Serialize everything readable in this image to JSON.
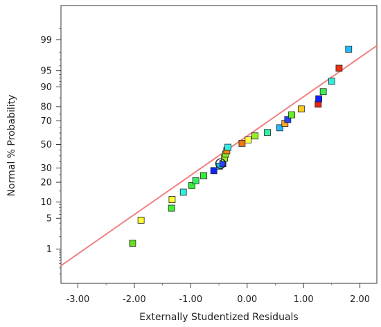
{
  "chart_data": {
    "type": "scatter",
    "xlabel": "Externally Studentized Residuals",
    "ylabel": "Normal % Probability",
    "xlim": [
      -3.3,
      2.3
    ],
    "ylim": [
      0.1,
      99.9
    ],
    "y_scale": "normal-probability",
    "grid": false,
    "legend": "none",
    "x_ticks": [
      {
        "value": -3,
        "label": "-3.00"
      },
      {
        "value": -2,
        "label": "-2.00"
      },
      {
        "value": -1,
        "label": "-1.00"
      },
      {
        "value": 0,
        "label": "0.00"
      },
      {
        "value": 1,
        "label": "1.00"
      },
      {
        "value": 2,
        "label": "2.00"
      }
    ],
    "y_ticks": [
      {
        "value": 1,
        "label": "1"
      },
      {
        "value": 5,
        "label": "5"
      },
      {
        "value": 10,
        "label": "10"
      },
      {
        "value": 20,
        "label": "20"
      },
      {
        "value": 30,
        "label": "30"
      },
      {
        "value": 50,
        "label": "50"
      },
      {
        "value": 70,
        "label": "70"
      },
      {
        "value": 80,
        "label": "80"
      },
      {
        "value": 90,
        "label": "90"
      },
      {
        "value": 95,
        "label": "95"
      },
      {
        "value": 99,
        "label": "99"
      }
    ],
    "reference_line": {
      "color": "#f08080",
      "points": [
        {
          "x": -3.3,
          "y": 0.35
        },
        {
          "x": 2.3,
          "y": 98.6
        }
      ]
    },
    "highlight_point": {
      "x": -0.47,
      "y": 33.5
    },
    "points": [
      {
        "x": -2.03,
        "y": 1.4,
        "color": "#66dd22"
      },
      {
        "x": -1.88,
        "y": 4.6,
        "color": "#ffff33"
      },
      {
        "x": -1.34,
        "y": 7.8,
        "color": "#44ee33"
      },
      {
        "x": -1.33,
        "y": 11.0,
        "color": "#ffff33"
      },
      {
        "x": -1.13,
        "y": 14.4,
        "color": "#33eedd"
      },
      {
        "x": -0.98,
        "y": 18.0,
        "color": "#33ee33"
      },
      {
        "x": -0.91,
        "y": 21.0,
        "color": "#33ee66"
      },
      {
        "x": -0.77,
        "y": 24.4,
        "color": "#33ee33"
      },
      {
        "x": -0.59,
        "y": 28.0,
        "color": "#1122ff"
      },
      {
        "x": -0.49,
        "y": 31.5,
        "color": "#22bbff"
      },
      {
        "x": -0.43,
        "y": 33.5,
        "color": "#2244ff"
      },
      {
        "x": -0.4,
        "y": 38.0,
        "color": "#99ee22"
      },
      {
        "x": -0.38,
        "y": 41.5,
        "color": "#88ee22"
      },
      {
        "x": -0.36,
        "y": 44.5,
        "color": "#ee8811"
      },
      {
        "x": -0.34,
        "y": 47.5,
        "color": "#33eeee"
      },
      {
        "x": -0.09,
        "y": 51.0,
        "color": "#ee7711"
      },
      {
        "x": 0.02,
        "y": 54.0,
        "color": "#ffff44"
      },
      {
        "x": 0.14,
        "y": 57.5,
        "color": "#99ee22"
      },
      {
        "x": 0.36,
        "y": 60.5,
        "color": "#33eeaa"
      },
      {
        "x": 0.58,
        "y": 64.5,
        "color": "#22bbff"
      },
      {
        "x": 0.67,
        "y": 68.0,
        "color": "#ffaa22"
      },
      {
        "x": 0.72,
        "y": 71.0,
        "color": "#2244ff"
      },
      {
        "x": 0.79,
        "y": 74.5,
        "color": "#66ee22"
      },
      {
        "x": 0.96,
        "y": 78.5,
        "color": "#ffcc22"
      },
      {
        "x": 1.26,
        "y": 81.5,
        "color": "#ee2211"
      },
      {
        "x": 1.27,
        "y": 84.5,
        "color": "#1122ff"
      },
      {
        "x": 1.35,
        "y": 88.0,
        "color": "#44ee55"
      },
      {
        "x": 1.5,
        "y": 92.0,
        "color": "#33eedd"
      },
      {
        "x": 1.63,
        "y": 95.5,
        "color": "#ee3311"
      },
      {
        "x": 1.8,
        "y": 98.3,
        "color": "#22bbff"
      }
    ]
  }
}
